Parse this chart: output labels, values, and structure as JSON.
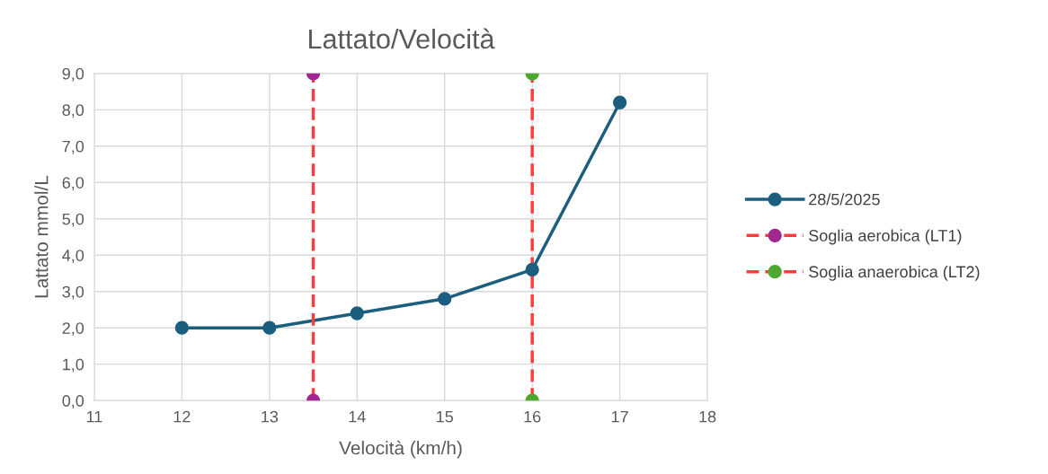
{
  "chart_data": {
    "type": "line",
    "title": "Lattato/Velocità",
    "xlabel": "Velocità (km/h)",
    "ylabel": "Lattato mmol/L",
    "series": [
      {
        "name": "28/5/2025",
        "color": "#1b5e7e",
        "x": [
          12,
          13,
          14,
          15,
          16,
          17
        ],
        "values": [
          2.0,
          2.0,
          2.4,
          2.8,
          3.6,
          8.2
        ],
        "line_style": "solid"
      },
      {
        "name": "Soglia aerobica (LT1)",
        "color": "#ff3b3b",
        "colors": [
          "#a0288f",
          "#a0288f"
        ],
        "x": [
          13.5,
          13.5
        ],
        "values": [
          0,
          9
        ],
        "line_style": "dashed"
      },
      {
        "name": "Soglia anaerobica (LT2)",
        "color": "#ff3b3b",
        "colors": [
          "#4ea72e",
          "#4ea72e"
        ],
        "x": [
          16,
          16
        ],
        "values": [
          0,
          9
        ],
        "line_style": "dashed"
      }
    ],
    "marker": "circle",
    "xlim": [
      11,
      18
    ],
    "xticks": [
      11,
      12,
      13,
      14,
      15,
      16,
      17,
      18
    ],
    "ylim": [
      0,
      9
    ],
    "yticks": [
      {
        "value": 0,
        "label": "0,0"
      },
      {
        "value": 1,
        "label": "1,0"
      },
      {
        "value": 2,
        "label": "2,0"
      },
      {
        "value": 3,
        "label": "3,0"
      },
      {
        "value": 4,
        "label": "4,0"
      },
      {
        "value": 5,
        "label": "5,0"
      },
      {
        "value": 6,
        "label": "6,0"
      },
      {
        "value": 7,
        "label": "7,0"
      },
      {
        "value": 8,
        "label": "8,0"
      },
      {
        "value": 9,
        "label": "9,0"
      }
    ],
    "grid": true,
    "legend": "right"
  }
}
